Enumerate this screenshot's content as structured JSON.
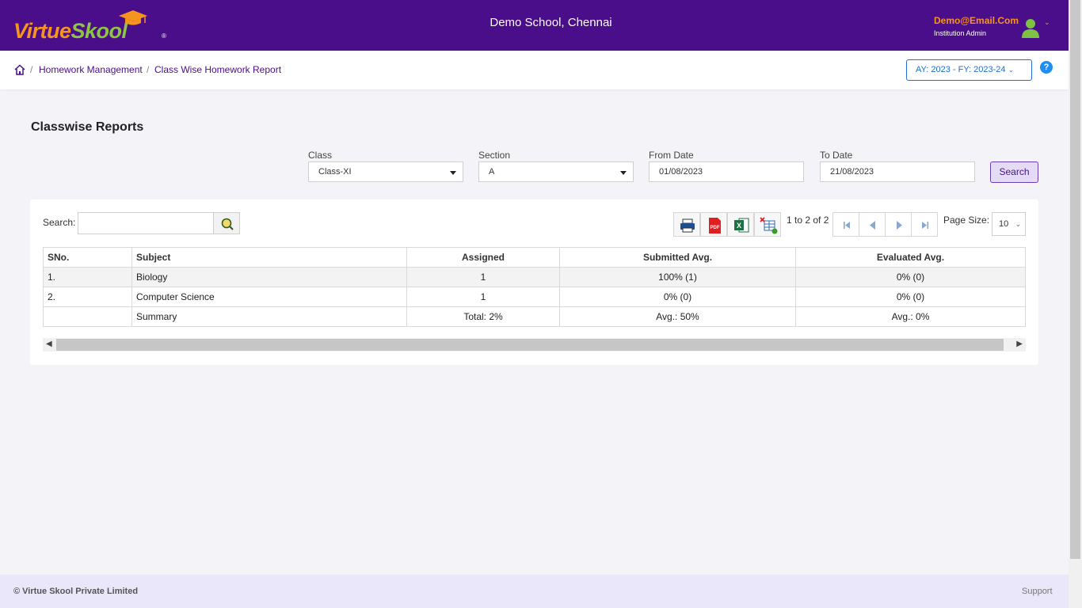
{
  "header": {
    "logo_part1": "Virtue",
    "logo_part2": "Skool",
    "logo_reg": "®",
    "school_name": "Demo School, Chennai",
    "user_email": "Demo@Email.Com",
    "user_role": "Institution Admin",
    "avatar_icon": "user-avatar-icon",
    "accent_color": "#4b0e8a"
  },
  "breadcrumb": {
    "home_icon": "home-icon",
    "items": [
      "Homework Management",
      "Class Wise Homework Report"
    ],
    "separator": "/",
    "academic_year": "AY: 2023 - FY: 2023-24",
    "help": "?"
  },
  "page": {
    "title": "Classwise Reports"
  },
  "filters": {
    "class_label": "Class",
    "class_value": "Class-XI",
    "section_label": "Section",
    "section_value": "A",
    "from_label": "From Date",
    "from_value": "01/08/2023",
    "to_label": "To Date",
    "to_value": "21/08/2023",
    "search_button": "Search"
  },
  "toolbar": {
    "search_label": "Search:",
    "search_value": "",
    "export_icons": [
      "print-icon",
      "pdf-icon",
      "excel-icon",
      "column-chooser-icon"
    ],
    "pager_info": "1 to 2 of 2",
    "page_size_label": "Page Size:",
    "page_size_value": "10"
  },
  "table": {
    "headers": [
      "SNo.",
      "Subject",
      "Assigned",
      "Submitted Avg.",
      "Evaluated Avg."
    ],
    "rows": [
      [
        "1.",
        "Biology",
        "1",
        "100% (1)",
        "0% (0)"
      ],
      [
        "2.",
        "Computer Science",
        "1",
        "0% (0)",
        "0% (0)"
      ]
    ],
    "summary": [
      "",
      "Summary",
      "Total: 2%",
      "Avg.: 50%",
      "Avg.: 0%"
    ]
  },
  "footer": {
    "copyright": "© Virtue Skool Private Limited",
    "support": "Support"
  }
}
